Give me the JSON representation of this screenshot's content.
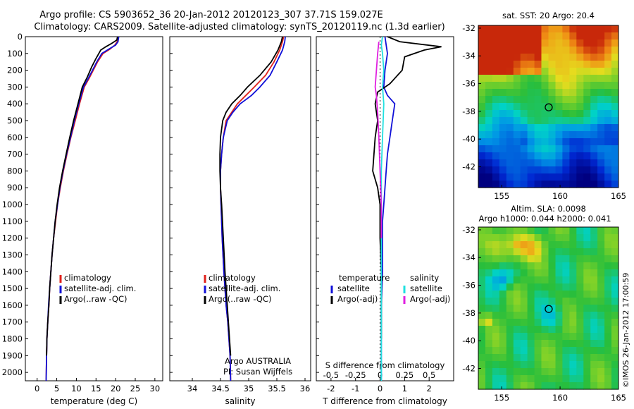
{
  "header": {
    "line1": "Argo profile: CS 5903652_36 20-Jan-2012 20120123_307 37.71S 159.027E",
    "line2": "Climatology: CARS2009. Satellite-adjusted climatology: synTS_20120119.nc (1.3d earlier)"
  },
  "colors": {
    "climatology": "#e0201a",
    "satellite": "#1010d8",
    "argo": "#000000",
    "sat_salinity": "#20e0e0",
    "argo_salinity": "#e020e0"
  },
  "chart_data": [
    {
      "type": "line",
      "xlabel": "temperature (deg C)",
      "xlim": [
        -3,
        32
      ],
      "ylim": [
        0,
        2050
      ],
      "y_inverted": true,
      "yticks": [
        0,
        100,
        200,
        300,
        400,
        500,
        600,
        700,
        800,
        900,
        1000,
        1100,
        1200,
        1300,
        1400,
        1500,
        1600,
        1700,
        1800,
        1900,
        2000
      ],
      "xticks": [
        0,
        5,
        10,
        15,
        20,
        25,
        30
      ],
      "legend": {
        "placement": "lower-middle",
        "entries": [
          "climatology",
          "satellite-adj. clim.",
          "Argo(..raw -QC)"
        ]
      },
      "series": [
        {
          "name": "climatology",
          "color": "#e0201a",
          "x": [
            20.6,
            20.4,
            19.8,
            18.5,
            16.8,
            15.4,
            14.3,
            13.2,
            12.0,
            10.8,
            9.7,
            8.6,
            7.6,
            6.7,
            5.9,
            5.2,
            4.7,
            4.2,
            3.8,
            3.5,
            3.2,
            3.0,
            2.7,
            2.5,
            2.4,
            2.3
          ],
          "y": [
            0,
            30,
            50,
            75,
            100,
            150,
            200,
            250,
            300,
            400,
            500,
            600,
            700,
            800,
            900,
            1000,
            1100,
            1200,
            1300,
            1400,
            1500,
            1600,
            1700,
            1800,
            1900,
            2050
          ]
        },
        {
          "name": "satellite-adj. clim.",
          "color": "#1010d8",
          "x": [
            20.8,
            20.6,
            20.0,
            18.2,
            16.5,
            15.2,
            14.1,
            13.0,
            11.8,
            10.6,
            9.5,
            8.5,
            7.5,
            6.6,
            5.8,
            5.2,
            4.6,
            4.2,
            3.8,
            3.5,
            3.2,
            2.9,
            2.7,
            2.5,
            2.4,
            2.3
          ],
          "y": [
            0,
            30,
            50,
            75,
            100,
            150,
            200,
            250,
            300,
            400,
            500,
            600,
            700,
            800,
            900,
            1000,
            1100,
            1200,
            1300,
            1400,
            1500,
            1600,
            1700,
            1800,
            1900,
            2050
          ]
        },
        {
          "name": "Argo(..raw -QC)",
          "color": "#000000",
          "x": [
            20.5,
            20.3,
            19.0,
            17.5,
            16.2,
            15.0,
            13.9,
            12.8,
            11.5,
            10.4,
            9.3,
            8.3,
            7.4,
            6.5,
            5.7,
            5.1,
            4.6,
            4.2,
            3.8,
            3.5,
            3.2,
            3.0,
            2.7,
            2.5,
            2.4
          ],
          "y": [
            0,
            20,
            40,
            60,
            80,
            130,
            180,
            240,
            300,
            400,
            500,
            600,
            700,
            800,
            900,
            1000,
            1100,
            1200,
            1300,
            1400,
            1500,
            1600,
            1700,
            1800,
            1900
          ]
        }
      ]
    },
    {
      "type": "line",
      "xlabel": "salinity",
      "xlim": [
        33.6,
        36.1
      ],
      "ylim": [
        0,
        2050
      ],
      "y_inverted": true,
      "xticks": [
        34,
        34.5,
        35,
        35.5,
        36
      ],
      "xtick_labels": [
        "34",
        "34.5",
        "35",
        "35.5",
        "36"
      ],
      "legend": {
        "placement": "lower-middle",
        "entries": [
          "climatology",
          "satellite-adj. clim.",
          "Argo(..raw -QC)"
        ]
      },
      "annotations": [
        "Argo AUSTRALIA",
        "PI: Susan Wijffels"
      ],
      "series": [
        {
          "name": "climatology",
          "color": "#e0201a",
          "x": [
            35.62,
            35.6,
            35.55,
            35.45,
            35.3,
            35.1,
            34.95,
            34.8,
            34.7,
            34.6,
            34.55,
            34.52,
            34.5,
            34.5,
            34.51,
            34.53,
            34.56,
            34.6,
            34.63,
            34.65,
            34.67,
            34.68
          ],
          "y": [
            0,
            30,
            80,
            150,
            230,
            300,
            350,
            400,
            450,
            500,
            600,
            700,
            800,
            900,
            1000,
            1200,
            1400,
            1600,
            1700,
            1800,
            1900,
            2050
          ]
        },
        {
          "name": "satellite-adj. clim.",
          "color": "#1010d8",
          "x": [
            35.65,
            35.64,
            35.6,
            35.5,
            35.38,
            35.2,
            35.05,
            34.85,
            34.72,
            34.62,
            34.55,
            34.52,
            34.5,
            34.5,
            34.51,
            34.53,
            34.56,
            34.6,
            34.63,
            34.65,
            34.67,
            34.68
          ],
          "y": [
            0,
            30,
            80,
            150,
            230,
            300,
            350,
            400,
            450,
            500,
            600,
            700,
            800,
            900,
            1000,
            1200,
            1400,
            1600,
            1700,
            1800,
            1900,
            2050
          ]
        },
        {
          "name": "Argo(..raw -QC)",
          "color": "#000000",
          "x": [
            35.6,
            35.58,
            35.52,
            35.4,
            35.2,
            34.98,
            34.85,
            34.7,
            34.6,
            34.54,
            34.5,
            34.49,
            34.49,
            34.5,
            34.52,
            34.55,
            34.58,
            34.62,
            34.64,
            34.66,
            34.68
          ],
          "y": [
            0,
            30,
            80,
            150,
            230,
            300,
            350,
            400,
            450,
            500,
            600,
            700,
            800,
            900,
            1000,
            1200,
            1400,
            1600,
            1700,
            1800,
            1900
          ]
        }
      ]
    },
    {
      "type": "line",
      "xlabel": "T difference from climatology",
      "xlabel_top": "S difference from climatology",
      "xlim": [
        -2.6,
        3.0
      ],
      "ylim": [
        0,
        2050
      ],
      "y_inverted": true,
      "xticks": [
        -2,
        -1,
        0,
        1,
        2
      ],
      "top_ticks": [
        "-0.5",
        "-0.25",
        "0",
        "0.25",
        "0.5"
      ],
      "top_tick_positions": [
        -2,
        -1,
        0,
        1,
        2
      ],
      "legend": {
        "placement": "lower-middle",
        "groups": [
          {
            "title": "temperature",
            "entries": [
              "satellite",
              "Argo(-adj)"
            ]
          },
          {
            "title": "salinity",
            "entries": [
              "satellite",
              "Argo(-adj)"
            ]
          }
        ]
      },
      "series": [
        {
          "name": "temperature satellite",
          "color": "#1010d8",
          "x": [
            0.2,
            0.25,
            0.3,
            0.2,
            0.15,
            0.3,
            0.6,
            0.5,
            0.4,
            0.3,
            0.25,
            0.2,
            0.15,
            0.1,
            0.1,
            0.1,
            0.05,
            0.05,
            0.05,
            0.05,
            0.05
          ],
          "y": [
            0,
            50,
            100,
            200,
            300,
            350,
            400,
            500,
            600,
            700,
            800,
            900,
            1000,
            1100,
            1200,
            1400,
            1600,
            1700,
            1800,
            1900,
            2050
          ]
        },
        {
          "name": "temperature Argo(-adj)",
          "color": "#000000",
          "x": [
            0.3,
            0.8,
            2.5,
            1.8,
            1.0,
            0.9,
            0.4,
            -0.1,
            -0.2,
            -0.1,
            -0.2,
            -0.3,
            -0.1,
            0.0,
            0.0,
            0.05,
            0.05,
            0.05
          ],
          "y": [
            0,
            30,
            60,
            80,
            120,
            200,
            280,
            330,
            400,
            500,
            600,
            800,
            900,
            1000,
            1200,
            1400,
            1600,
            1800
          ]
        },
        {
          "name": "salinity satellite",
          "color": "#20e0e0",
          "x": [
            0.1,
            0.05,
            0.1,
            0.15,
            0.1,
            0.15,
            0.1,
            0.05,
            0.05,
            0.05,
            0.05,
            0.05
          ],
          "y": [
            0,
            50,
            100,
            200,
            300,
            400,
            600,
            800,
            1000,
            1400,
            1800,
            2050
          ]
        },
        {
          "name": "salinity Argo(-adj)",
          "color": "#e020e0",
          "x": [
            -0.05,
            -0.1,
            -0.2,
            -0.15,
            -0.1,
            -0.05,
            0.0,
            0.05,
            0.05
          ],
          "y": [
            30,
            100,
            300,
            350,
            450,
            600,
            800,
            1000,
            1200
          ]
        }
      ]
    },
    {
      "type": "heatmap",
      "title": "sat. SST: 20 Argo: 20.4",
      "xlim": [
        153,
        165
      ],
      "ylim": [
        -43.5,
        -31.8
      ],
      "xticks": [
        155,
        160,
        165
      ],
      "yticks": [
        -32,
        -34,
        -36,
        -38,
        -40,
        -42
      ],
      "marker": {
        "lon": 159.027,
        "lat": -37.71
      }
    },
    {
      "type": "heatmap",
      "title": "Altim. SLA: 0.0098",
      "subtitle": "Argo h1000: 0.044 h2000: 0.041",
      "xlim": [
        153,
        165
      ],
      "ylim": [
        -43.5,
        -31.8
      ],
      "xticks": [
        155,
        160,
        165
      ],
      "yticks": [
        -32,
        -34,
        -36,
        -38,
        -40,
        -42
      ],
      "marker": {
        "lon": 159.027,
        "lat": -37.71
      }
    }
  ],
  "footer": {
    "credit": "©IMOS 26-Jan-2012 17:00:59"
  }
}
